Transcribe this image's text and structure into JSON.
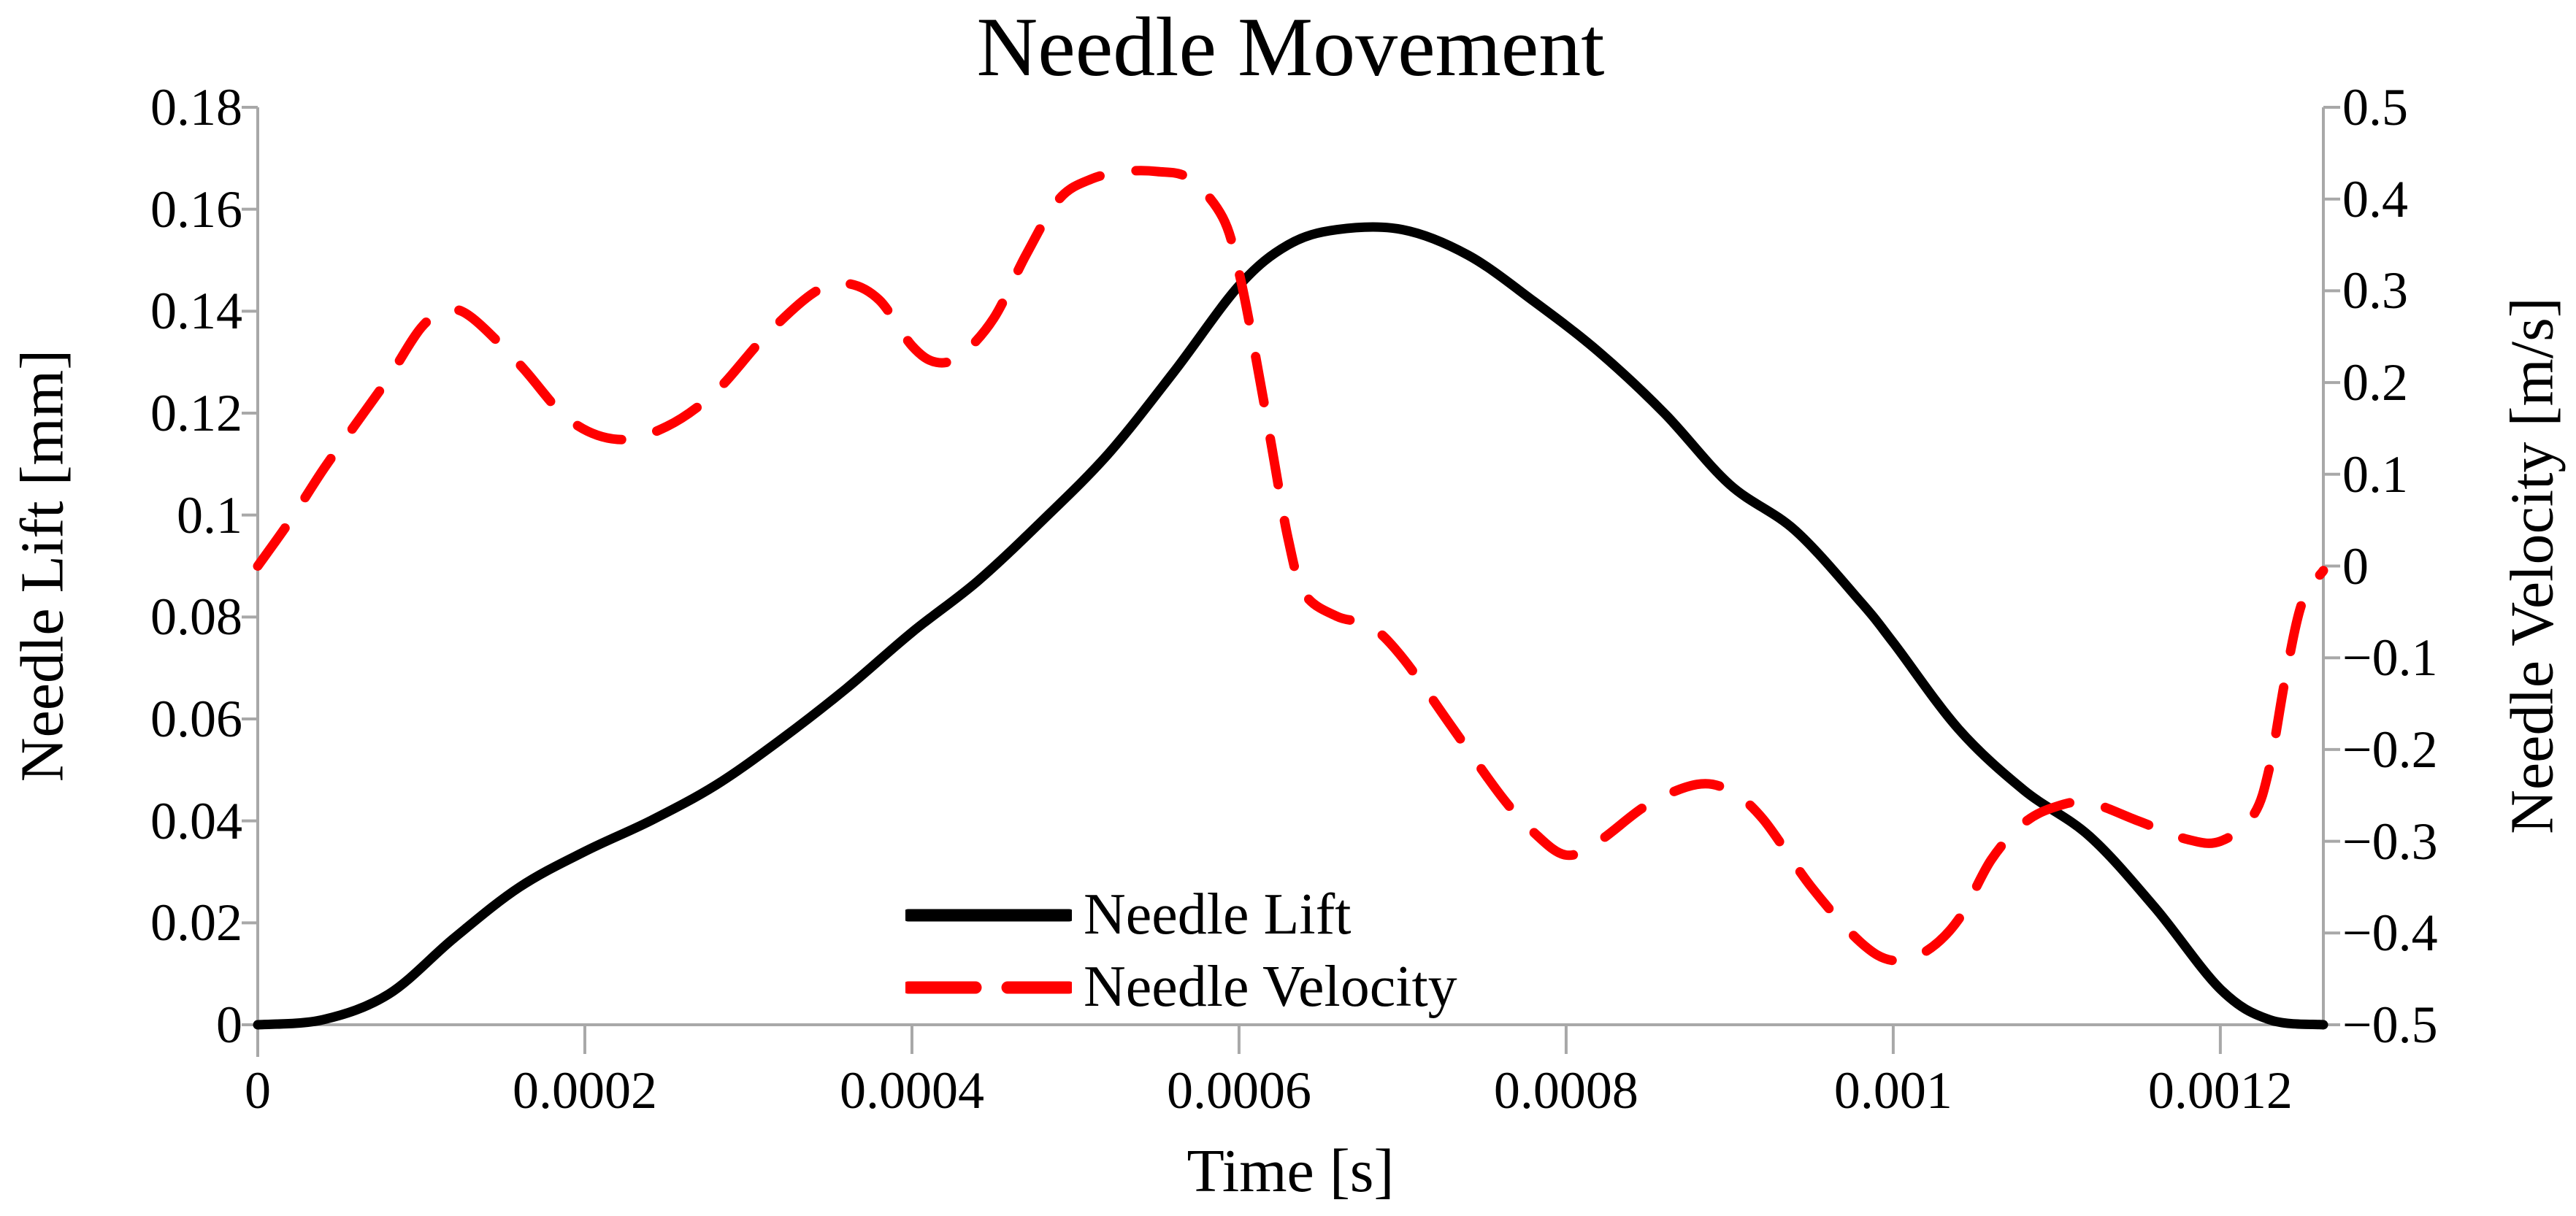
{
  "title": "Needle Movement",
  "colors": {
    "lift_line": "#000000",
    "velocity_line": "#ff0000",
    "axis_line": "#a8a8a8",
    "text": "#000000",
    "background": "#ffffff"
  },
  "legend": {
    "items": [
      {
        "label": "Needle Lift",
        "swatch": "solid-black-line"
      },
      {
        "label": "Needle Velocity",
        "swatch": "dashed-red-line"
      }
    ]
  },
  "chart_data": {
    "type": "line",
    "title": "Needle Movement",
    "xlabel": "Time [s]",
    "ylabel_left": "Needle Lift [mm]",
    "ylabel_right": "Needle Velocity [m/s]",
    "grid": false,
    "legend_position": "inside bottom-center",
    "xlim": [
      0,
      0.001263
    ],
    "ylim_left": [
      0,
      0.18
    ],
    "ylim_right": [
      -0.5,
      0.5
    ],
    "x_ticks": [
      {
        "v": 0,
        "label": "0"
      },
      {
        "v": 0.0002,
        "label": "0.0002"
      },
      {
        "v": 0.0004,
        "label": "0.0004"
      },
      {
        "v": 0.0006,
        "label": "0.0006"
      },
      {
        "v": 0.0008,
        "label": "0.0008"
      },
      {
        "v": 0.001,
        "label": "0.001"
      },
      {
        "v": 0.0012,
        "label": "0.0012"
      }
    ],
    "y_ticks_left": [
      {
        "v": 0.18,
        "label": "0.18"
      },
      {
        "v": 0.16,
        "label": "0.16"
      },
      {
        "v": 0.14,
        "label": "0.14"
      },
      {
        "v": 0.12,
        "label": "0.12"
      },
      {
        "v": 0.1,
        "label": "0.1"
      },
      {
        "v": 0.08,
        "label": "0.08"
      },
      {
        "v": 0.06,
        "label": "0.06"
      },
      {
        "v": 0.04,
        "label": "0.04"
      },
      {
        "v": 0.02,
        "label": "0.02"
      },
      {
        "v": 0,
        "label": "0"
      }
    ],
    "y_ticks_right": [
      {
        "v": 0.5,
        "label": "0.5"
      },
      {
        "v": 0.4,
        "label": "0.4"
      },
      {
        "v": 0.3,
        "label": "0.3"
      },
      {
        "v": 0.2,
        "label": "0.2"
      },
      {
        "v": 0.1,
        "label": "0.1"
      },
      {
        "v": 0,
        "label": "0"
      },
      {
        "v": -0.1,
        "label": "−0.1"
      },
      {
        "v": -0.2,
        "label": "−0.2"
      },
      {
        "v": -0.3,
        "label": "−0.3"
      },
      {
        "v": -0.4,
        "label": "−0.4"
      },
      {
        "v": -0.5,
        "label": "−0.5"
      }
    ],
    "series": [
      {
        "name": "Needle Lift",
        "axis": "left",
        "units": "mm",
        "color": "#000000",
        "line_style": "solid",
        "x": [
          0,
          4e-05,
          8e-05,
          0.00012,
          0.00016,
          0.0002,
          0.00024,
          0.00028,
          0.00032,
          0.00036,
          0.0004,
          0.00044,
          0.00048,
          0.00052,
          0.00056,
          0.0006,
          0.00063,
          0.00066,
          0.0007,
          0.00074,
          0.00078,
          0.00082,
          0.00086,
          0.0009,
          0.00094,
          0.00098,
          0.001,
          0.00104,
          0.00108,
          0.00112,
          0.00116,
          0.0012,
          0.00123,
          0.001263
        ],
        "y": [
          0,
          0.001,
          0.006,
          0.017,
          0.027,
          0.034,
          0.04,
          0.047,
          0.056,
          0.066,
          0.077,
          0.087,
          0.099,
          0.112,
          0.128,
          0.145,
          0.153,
          0.156,
          0.156,
          0.151,
          0.142,
          0.132,
          0.12,
          0.106,
          0.097,
          0.083,
          0.075,
          0.058,
          0.046,
          0.037,
          0.023,
          0.007,
          0.001,
          0
        ]
      },
      {
        "name": "Needle Velocity",
        "axis": "right",
        "units": "m/s",
        "color": "#ff0000",
        "line_style": "dashed",
        "x": [
          0,
          2e-05,
          4e-05,
          6e-05,
          8e-05,
          0.0001,
          0.000115,
          0.00013,
          0.00016,
          0.00019,
          0.00022,
          0.00025,
          0.00028,
          0.00031,
          0.00034,
          0.00036,
          0.00038,
          0.0004,
          0.000415,
          0.00043,
          0.00045,
          0.00047,
          0.00049,
          0.00051,
          0.00053,
          0.00055,
          0.00057,
          0.00059,
          0.0006,
          0.00061,
          0.00062,
          0.00063,
          0.00064,
          0.00066,
          0.00068,
          0.0007,
          0.00073,
          0.00076,
          0.00078,
          0.0008,
          0.00082,
          0.00085,
          0.00088,
          0.0009,
          0.00092,
          0.00095,
          0.00098,
          0.001,
          0.00102,
          0.00104,
          0.00106,
          0.00108,
          0.0011,
          0.00112,
          0.00115,
          0.00118,
          0.0012,
          0.00122,
          0.00123,
          0.00124,
          0.00125,
          0.001263
        ],
        "y": [
          0,
          0.05,
          0.105,
          0.155,
          0.205,
          0.26,
          0.278,
          0.272,
          0.22,
          0.16,
          0.138,
          0.152,
          0.19,
          0.25,
          0.298,
          0.308,
          0.29,
          0.24,
          0.222,
          0.23,
          0.27,
          0.34,
          0.4,
          0.422,
          0.43,
          0.43,
          0.422,
          0.38,
          0.32,
          0.23,
          0.13,
          0.03,
          -0.03,
          -0.055,
          -0.065,
          -0.1,
          -0.175,
          -0.25,
          -0.29,
          -0.315,
          -0.3,
          -0.26,
          -0.238,
          -0.245,
          -0.275,
          -0.35,
          -0.41,
          -0.43,
          -0.42,
          -0.385,
          -0.32,
          -0.28,
          -0.262,
          -0.258,
          -0.278,
          -0.298,
          -0.3,
          -0.272,
          -0.22,
          -0.12,
          -0.04,
          -0.005
        ]
      }
    ]
  }
}
